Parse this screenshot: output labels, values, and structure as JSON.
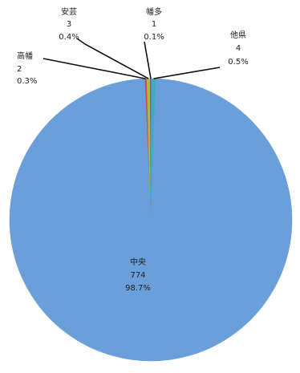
{
  "chart_data": {
    "type": "pie",
    "title": "",
    "slices": [
      {
        "name": "中央",
        "count": "774",
        "percent": "98.7%",
        "value": 774,
        "color": "#6a9fd9"
      },
      {
        "name": "高幡",
        "count": "2",
        "percent": "0.3%",
        "value": 2,
        "color": "#d94a3d"
      },
      {
        "name": "安芸",
        "count": "3",
        "percent": "0.4%",
        "value": 3,
        "color": "#a3bd55"
      },
      {
        "name": "幡多",
        "count": "1",
        "percent": "0.1%",
        "value": 1,
        "color": "#7b5aa6"
      },
      {
        "name": "他県",
        "count": "4",
        "percent": "0.5%",
        "value": 4,
        "color": "#43a9c9"
      }
    ],
    "legend": "none",
    "labels": "outside-with-leader-lines"
  }
}
